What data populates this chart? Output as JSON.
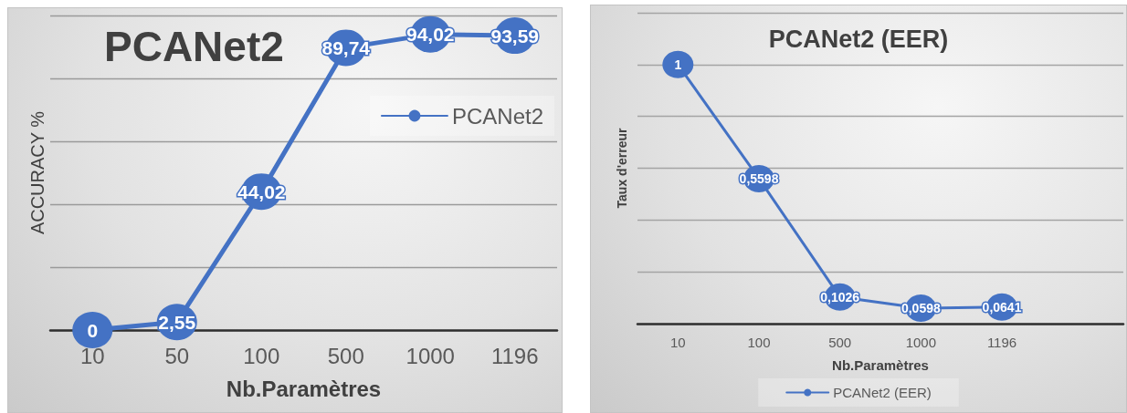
{
  "chart_data": [
    {
      "type": "line",
      "title": "PCANet2",
      "xlabel": "Nb.Paramètres",
      "ylabel": "ACCURACY %",
      "categories": [
        "10",
        "50",
        "100",
        "500",
        "1000",
        "1196"
      ],
      "series": [
        {
          "name": "PCANet2",
          "color": "#4472c4",
          "values": [
            0,
            2.55,
            44.02,
            89.74,
            94.02,
            93.59
          ],
          "value_labels": [
            "0",
            "2,55",
            "44,02",
            "89,74",
            "94,02",
            "93,59"
          ]
        }
      ],
      "ylim": [
        0,
        100
      ],
      "yticks": [
        {
          "value": 0,
          "label": null
        },
        {
          "value": 20,
          "label": null
        },
        {
          "value": 40,
          "label": null
        },
        {
          "value": 60,
          "label": null
        },
        {
          "value": 80,
          "label": null
        },
        {
          "value": 100,
          "label": null
        }
      ],
      "tick_labels": "x",
      "grid": "y",
      "legend": "top right",
      "marker": "circle",
      "line_style": "solid"
    },
    {
      "type": "line",
      "title": "PCANet2 (EER)",
      "xlabel": "Nb.Paramètres",
      "ylabel": "Taux d'erreur",
      "categories": [
        "10",
        "100",
        "500",
        "1000",
        "1196",
        null
      ],
      "series": [
        {
          "name": "PCANet2 (EER)",
          "color": "#4472c4",
          "values": [
            1,
            0.5598,
            0.1026,
            0.0598,
            0.0641,
            null
          ],
          "value_labels": [
            "1",
            "0,5598",
            "0,1026",
            "0,0598",
            "0,0641",
            null
          ]
        }
      ],
      "ylim": [
        0,
        1.2
      ],
      "yticks": [
        {
          "value": 0,
          "label": null
        },
        {
          "value": 0.2,
          "label": null
        },
        {
          "value": 0.4,
          "label": null
        },
        {
          "value": 0.6,
          "label": null
        },
        {
          "value": 0.8,
          "label": null
        },
        {
          "value": 1,
          "label": null
        },
        {
          "value": 1.2,
          "label": null
        }
      ],
      "tick_labels": "x",
      "grid": "y",
      "legend": "bottom",
      "marker": "circle",
      "line_style": "solid"
    }
  ]
}
